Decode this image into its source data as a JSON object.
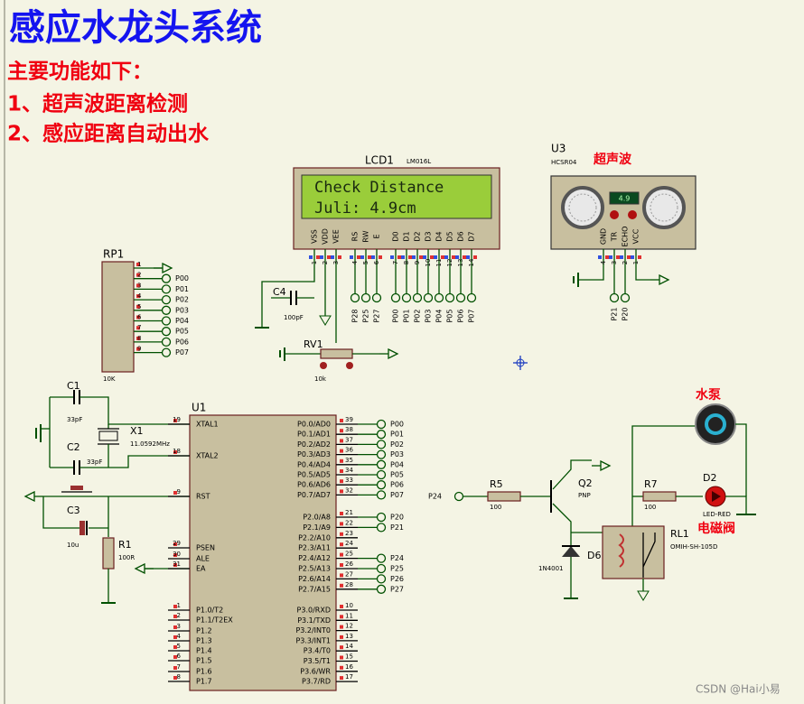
{
  "header": {
    "title": "感应水龙头系统",
    "features_heading": "主要功能如下：",
    "features": [
      "1、超声波距离检测",
      "2、感应距离自动出水"
    ]
  },
  "lcd": {
    "ref": "LCD1",
    "part": "LM016L",
    "lines": [
      "Check Distance",
      "Juli:  4.9cm"
    ],
    "pins": [
      "VSS",
      "VDD",
      "VEE",
      "RS",
      "RW",
      "E",
      "D0",
      "D1",
      "D2",
      "D3",
      "D4",
      "D5",
      "D6",
      "D7"
    ],
    "pin_numbers": [
      "1",
      "2",
      "3",
      "4",
      "5",
      "6",
      "7",
      "8",
      "9",
      "10",
      "11",
      "12",
      "13",
      "14"
    ],
    "control_nets": [
      "P28",
      "P25",
      "P27"
    ],
    "data_nets": [
      "P00",
      "P01",
      "P02",
      "P03",
      "P04",
      "P05",
      "P06",
      "P07"
    ]
  },
  "sensor": {
    "ref": "U3",
    "part": "HCSR04",
    "label": "超声波",
    "reading": "4.9",
    "pins": [
      "GND",
      "TR",
      "ECHO",
      "VCC"
    ],
    "pin_numbers": [
      "4",
      "3",
      "2",
      "1"
    ],
    "nets": [
      "P21",
      "P20"
    ]
  },
  "rp1": {
    "ref": "RP1",
    "value": "10K",
    "pin_numbers": [
      "1",
      "2",
      "3",
      "4",
      "5",
      "6",
      "7",
      "8",
      "9"
    ],
    "nets": [
      "P00",
      "P01",
      "P02",
      "P03",
      "P04",
      "P05",
      "P06",
      "P07"
    ]
  },
  "c4": {
    "ref": "C4",
    "value": "100pF"
  },
  "rv1": {
    "ref": "RV1",
    "value": "10k"
  },
  "c1": {
    "ref": "C1",
    "value": "33pF"
  },
  "c2": {
    "ref": "C2",
    "value": "33pF"
  },
  "x1": {
    "ref": "X1",
    "value": "11.0592MHz"
  },
  "c3": {
    "ref": "C3",
    "value": "10u"
  },
  "r1": {
    "ref": "R1",
    "value": "100R"
  },
  "u1": {
    "ref": "U1",
    "left_pins": [
      {
        "number": "19",
        "name": "XTAL1"
      },
      {
        "number": "18",
        "name": "XTAL2"
      },
      {
        "number": "9",
        "name": "RST"
      },
      {
        "number": "29",
        "name": "PSEN"
      },
      {
        "number": "30",
        "name": "ALE"
      },
      {
        "number": "31",
        "name": "EA"
      },
      {
        "number": "1",
        "name": "P1.0/T2"
      },
      {
        "number": "2",
        "name": "P1.1/T2EX"
      },
      {
        "number": "3",
        "name": "P1.2"
      },
      {
        "number": "4",
        "name": "P1.3"
      },
      {
        "number": "5",
        "name": "P1.4"
      },
      {
        "number": "6",
        "name": "P1.5"
      },
      {
        "number": "7",
        "name": "P1.6"
      },
      {
        "number": "8",
        "name": "P1.7"
      }
    ],
    "right_pins": [
      {
        "number": "39",
        "name": "P0.0/AD0",
        "net": "P00"
      },
      {
        "number": "38",
        "name": "P0.1/AD1",
        "net": "P01"
      },
      {
        "number": "37",
        "name": "P0.2/AD2",
        "net": "P02"
      },
      {
        "number": "36",
        "name": "P0.3/AD3",
        "net": "P03"
      },
      {
        "number": "35",
        "name": "P0.4/AD4",
        "net": "P04"
      },
      {
        "number": "34",
        "name": "P0.5/AD5",
        "net": "P05"
      },
      {
        "number": "33",
        "name": "P0.6/AD6",
        "net": "P06"
      },
      {
        "number": "32",
        "name": "P0.7/AD7",
        "net": "P07"
      },
      {
        "number": "21",
        "name": "P2.0/A8",
        "net": "P20"
      },
      {
        "number": "22",
        "name": "P2.1/A9",
        "net": "P21"
      },
      {
        "number": "23",
        "name": "P2.2/A10"
      },
      {
        "number": "24",
        "name": "P2.3/A11"
      },
      {
        "number": "25",
        "name": "P2.4/A12",
        "net": "P24"
      },
      {
        "number": "26",
        "name": "P2.5/A13",
        "net": "P25"
      },
      {
        "number": "27",
        "name": "P2.6/A14",
        "net": "P26"
      },
      {
        "number": "28",
        "name": "P2.7/A15",
        "net": "P27"
      },
      {
        "number": "10",
        "name": "P3.0/RXD"
      },
      {
        "number": "11",
        "name": "P3.1/TXD"
      },
      {
        "number": "12",
        "name": "P3.2/INT0"
      },
      {
        "number": "13",
        "name": "P3.3/INT1"
      },
      {
        "number": "14",
        "name": "P3.4/T0"
      },
      {
        "number": "15",
        "name": "P3.5/T1"
      },
      {
        "number": "16",
        "name": "P3.6/WR"
      },
      {
        "number": "17",
        "name": "P3.7/RD"
      }
    ]
  },
  "r5": {
    "ref": "R5",
    "value": "100",
    "net": "P24"
  },
  "q2": {
    "ref": "Q2",
    "value": "PNP"
  },
  "d6": {
    "ref": "D6",
    "value": "1N4001"
  },
  "r7": {
    "ref": "R7",
    "value": "100"
  },
  "d2": {
    "ref": "D2",
    "value": "LED-RED"
  },
  "rl1": {
    "ref": "RL1",
    "value": "OMIH-SH-105D"
  },
  "pump_label": "水泵",
  "valve_label": "电磁阀",
  "watermark": "CSDN @Hai小易"
}
